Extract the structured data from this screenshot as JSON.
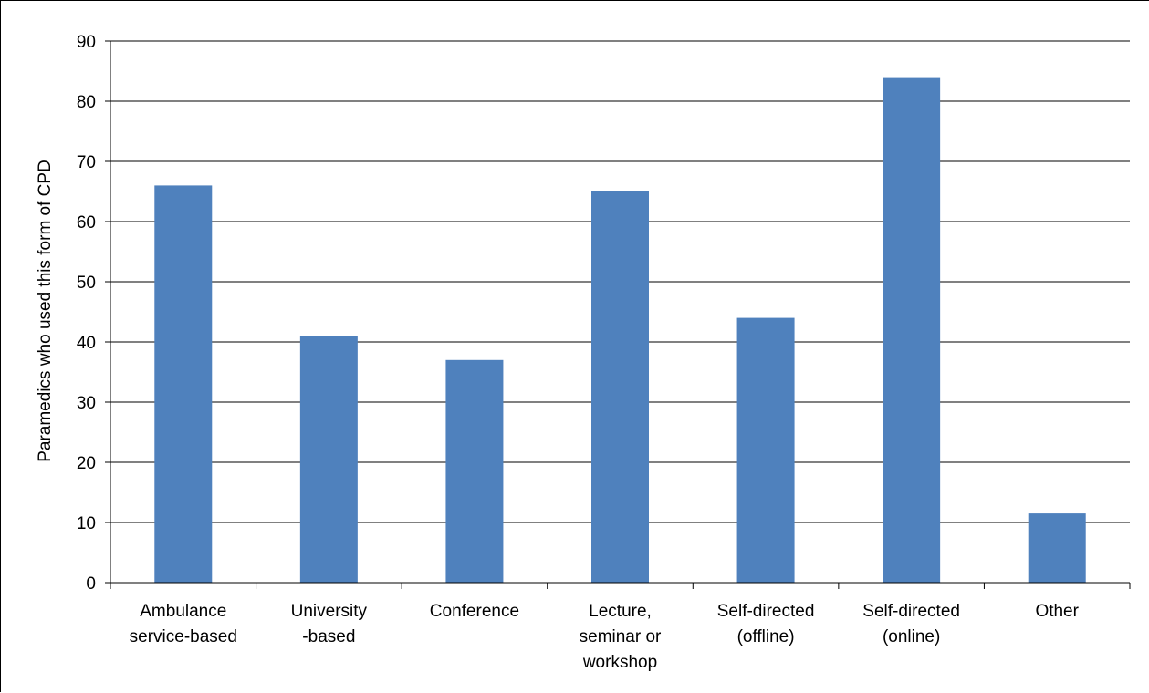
{
  "chart_data": {
    "type": "bar",
    "title": "",
    "xlabel": "",
    "ylabel": "Paramedics who used this form of CPD",
    "categories": [
      [
        "Ambulance",
        "service-based"
      ],
      [
        "University",
        "-based"
      ],
      [
        "Conference"
      ],
      [
        "Lecture,",
        "seminar or",
        "workshop"
      ],
      [
        "Self-directed",
        "(offline)"
      ],
      [
        "Self-directed",
        "(online)"
      ],
      [
        "Other"
      ]
    ],
    "values": [
      66,
      41,
      37,
      65,
      44,
      84,
      11.5
    ],
    "ylim": [
      0,
      90
    ],
    "yticks": [
      0,
      10,
      20,
      30,
      40,
      50,
      60,
      70,
      80,
      90
    ],
    "grid": true,
    "legend": "none",
    "bar_color": "#4f81bd"
  }
}
